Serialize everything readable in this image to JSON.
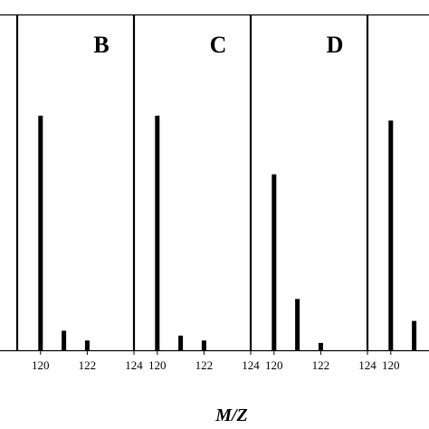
{
  "chart_data": {
    "type": "bar",
    "xlabel": "M/Z",
    "ylabel": "",
    "bar_color": "#000000",
    "xlim": [
      119,
      124
    ],
    "ylim": [
      0,
      100
    ],
    "xticks": [
      120,
      122,
      124
    ],
    "panels": [
      {
        "letter": "",
        "x": [],
        "values": [],
        "tick_labels": [
          "124"
        ],
        "partial": "left"
      },
      {
        "letter": "B",
        "x": [
          120,
          121,
          122
        ],
        "values": [
          96,
          8,
          4
        ],
        "tick_labels": [
          "120",
          "122",
          "124"
        ]
      },
      {
        "letter": "C",
        "x": [
          120,
          121,
          122
        ],
        "values": [
          96,
          6,
          4
        ],
        "tick_labels": [
          "120",
          "122",
          "124"
        ]
      },
      {
        "letter": "D",
        "x": [
          120,
          121,
          122
        ],
        "values": [
          72,
          21,
          3
        ],
        "tick_labels": [
          "120",
          "122",
          "124"
        ]
      },
      {
        "letter": "",
        "x": [
          120,
          121
        ],
        "values": [
          94,
          12
        ],
        "tick_labels": [
          "120",
          "12"
        ],
        "partial": "right"
      }
    ]
  }
}
